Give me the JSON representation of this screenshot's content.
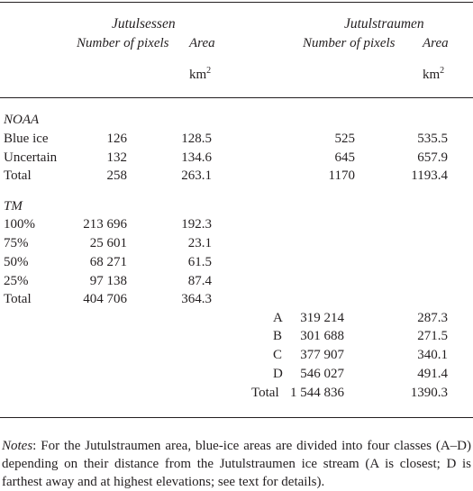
{
  "headers": {
    "group1": "Jutulsessen",
    "group2": "Jutulstraumen",
    "pixels": "Number of pixels",
    "area": "Area",
    "unit_base": "km",
    "unit_sup": "2"
  },
  "noaa": {
    "label": "NOAA",
    "rows": [
      {
        "label": "Blue ice",
        "j_px": "126",
        "j_area": "128.5",
        "s_px": "525",
        "s_area": "535.5"
      },
      {
        "label": "Uncertain",
        "j_px": "132",
        "j_area": "134.6",
        "s_px": "645",
        "s_area": "657.9"
      },
      {
        "label": "Total",
        "j_px": "258",
        "j_area": "263.1",
        "s_px": "1170",
        "s_area": "1193.4"
      }
    ]
  },
  "tm": {
    "label": "TM",
    "rows": [
      {
        "label": "100%",
        "px": "213 696",
        "area": "192.3"
      },
      {
        "label": "75%",
        "px": "25 601",
        "area": "23.1"
      },
      {
        "label": "50%",
        "px": "68 271",
        "area": "61.5"
      },
      {
        "label": "25%",
        "px": "97 138",
        "area": "87.4"
      },
      {
        "label": "Total",
        "px": "404 706",
        "area": "364.3"
      }
    ],
    "classes": [
      {
        "label": "A",
        "px": "319 214",
        "area": "287.3"
      },
      {
        "label": "B",
        "px": "301 688",
        "area": "271.5"
      },
      {
        "label": "C",
        "px": "377 907",
        "area": "340.1"
      },
      {
        "label": "D",
        "px": "546 027",
        "area": "491.4"
      },
      {
        "label": "Total",
        "px": "1 544 836",
        "area": "1390.3"
      }
    ]
  },
  "notes": {
    "label": "Notes",
    "text": ": For the Jutulstraumen area, blue-ice areas are divided into four classes (A–D) depending on their distance from the Jutulstraumen ice stream (A is closest; D is farthest away and at highest elevations; see text for details)."
  }
}
